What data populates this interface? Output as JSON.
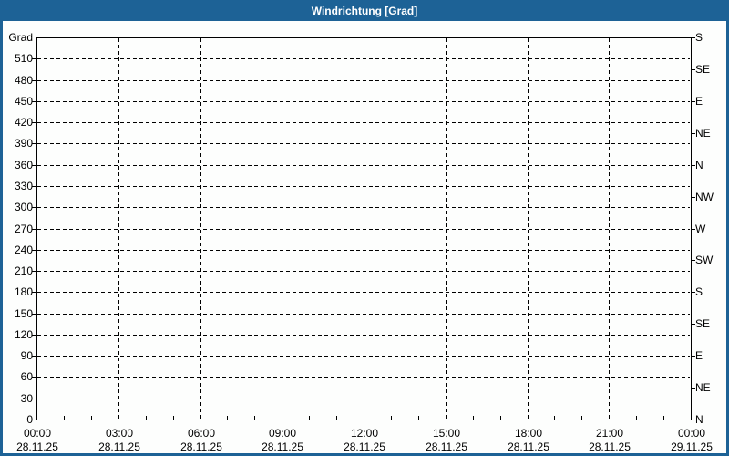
{
  "window": {
    "title": "Windrichtung [Grad]",
    "colors": {
      "titlebar_bg": "#1d6296",
      "titlebar_text": "#ffffff",
      "frame_border": "#1d6296",
      "background": "#fdfefd",
      "grid": "#000000"
    }
  },
  "chart_data": {
    "type": "line",
    "title": "Windrichtung [Grad]",
    "ylabel": "Grad",
    "ylim": [
      0,
      540
    ],
    "y_tick_step": 30,
    "y_ticks": [
      0,
      30,
      60,
      90,
      120,
      150,
      180,
      210,
      240,
      270,
      300,
      330,
      360,
      390,
      420,
      450,
      480,
      510
    ],
    "y_axis_unit_label": "Grad",
    "right_axis": {
      "unit": "compass",
      "tick_step_deg": 45,
      "ticks": [
        {
          "value": 540,
          "label": "S"
        },
        {
          "value": 495,
          "label": "SE"
        },
        {
          "value": 450,
          "label": "E"
        },
        {
          "value": 405,
          "label": "NE"
        },
        {
          "value": 360,
          "label": "N"
        },
        {
          "value": 315,
          "label": "NW"
        },
        {
          "value": 270,
          "label": "W"
        },
        {
          "value": 225,
          "label": "SW"
        },
        {
          "value": 180,
          "label": "S"
        },
        {
          "value": 135,
          "label": "SE"
        },
        {
          "value": 90,
          "label": "E"
        },
        {
          "value": 45,
          "label": "NE"
        },
        {
          "value": 0,
          "label": "N"
        }
      ]
    },
    "x_axis": {
      "range_hours": 24,
      "major_step_hours": 3,
      "minor_step_hours": 1,
      "ticks": [
        {
          "time": "00:00",
          "date": "28.11.25"
        },
        {
          "time": "03:00",
          "date": "28.11.25"
        },
        {
          "time": "06:00",
          "date": "28.11.25"
        },
        {
          "time": "09:00",
          "date": "28.11.25"
        },
        {
          "time": "12:00",
          "date": "28.11.25"
        },
        {
          "time": "15:00",
          "date": "28.11.25"
        },
        {
          "time": "18:00",
          "date": "28.11.25"
        },
        {
          "time": "21:00",
          "date": "28.11.25"
        },
        {
          "time": "00:00",
          "date": "29.11.25"
        }
      ]
    },
    "grid": "dashed",
    "legend": null,
    "series": []
  }
}
